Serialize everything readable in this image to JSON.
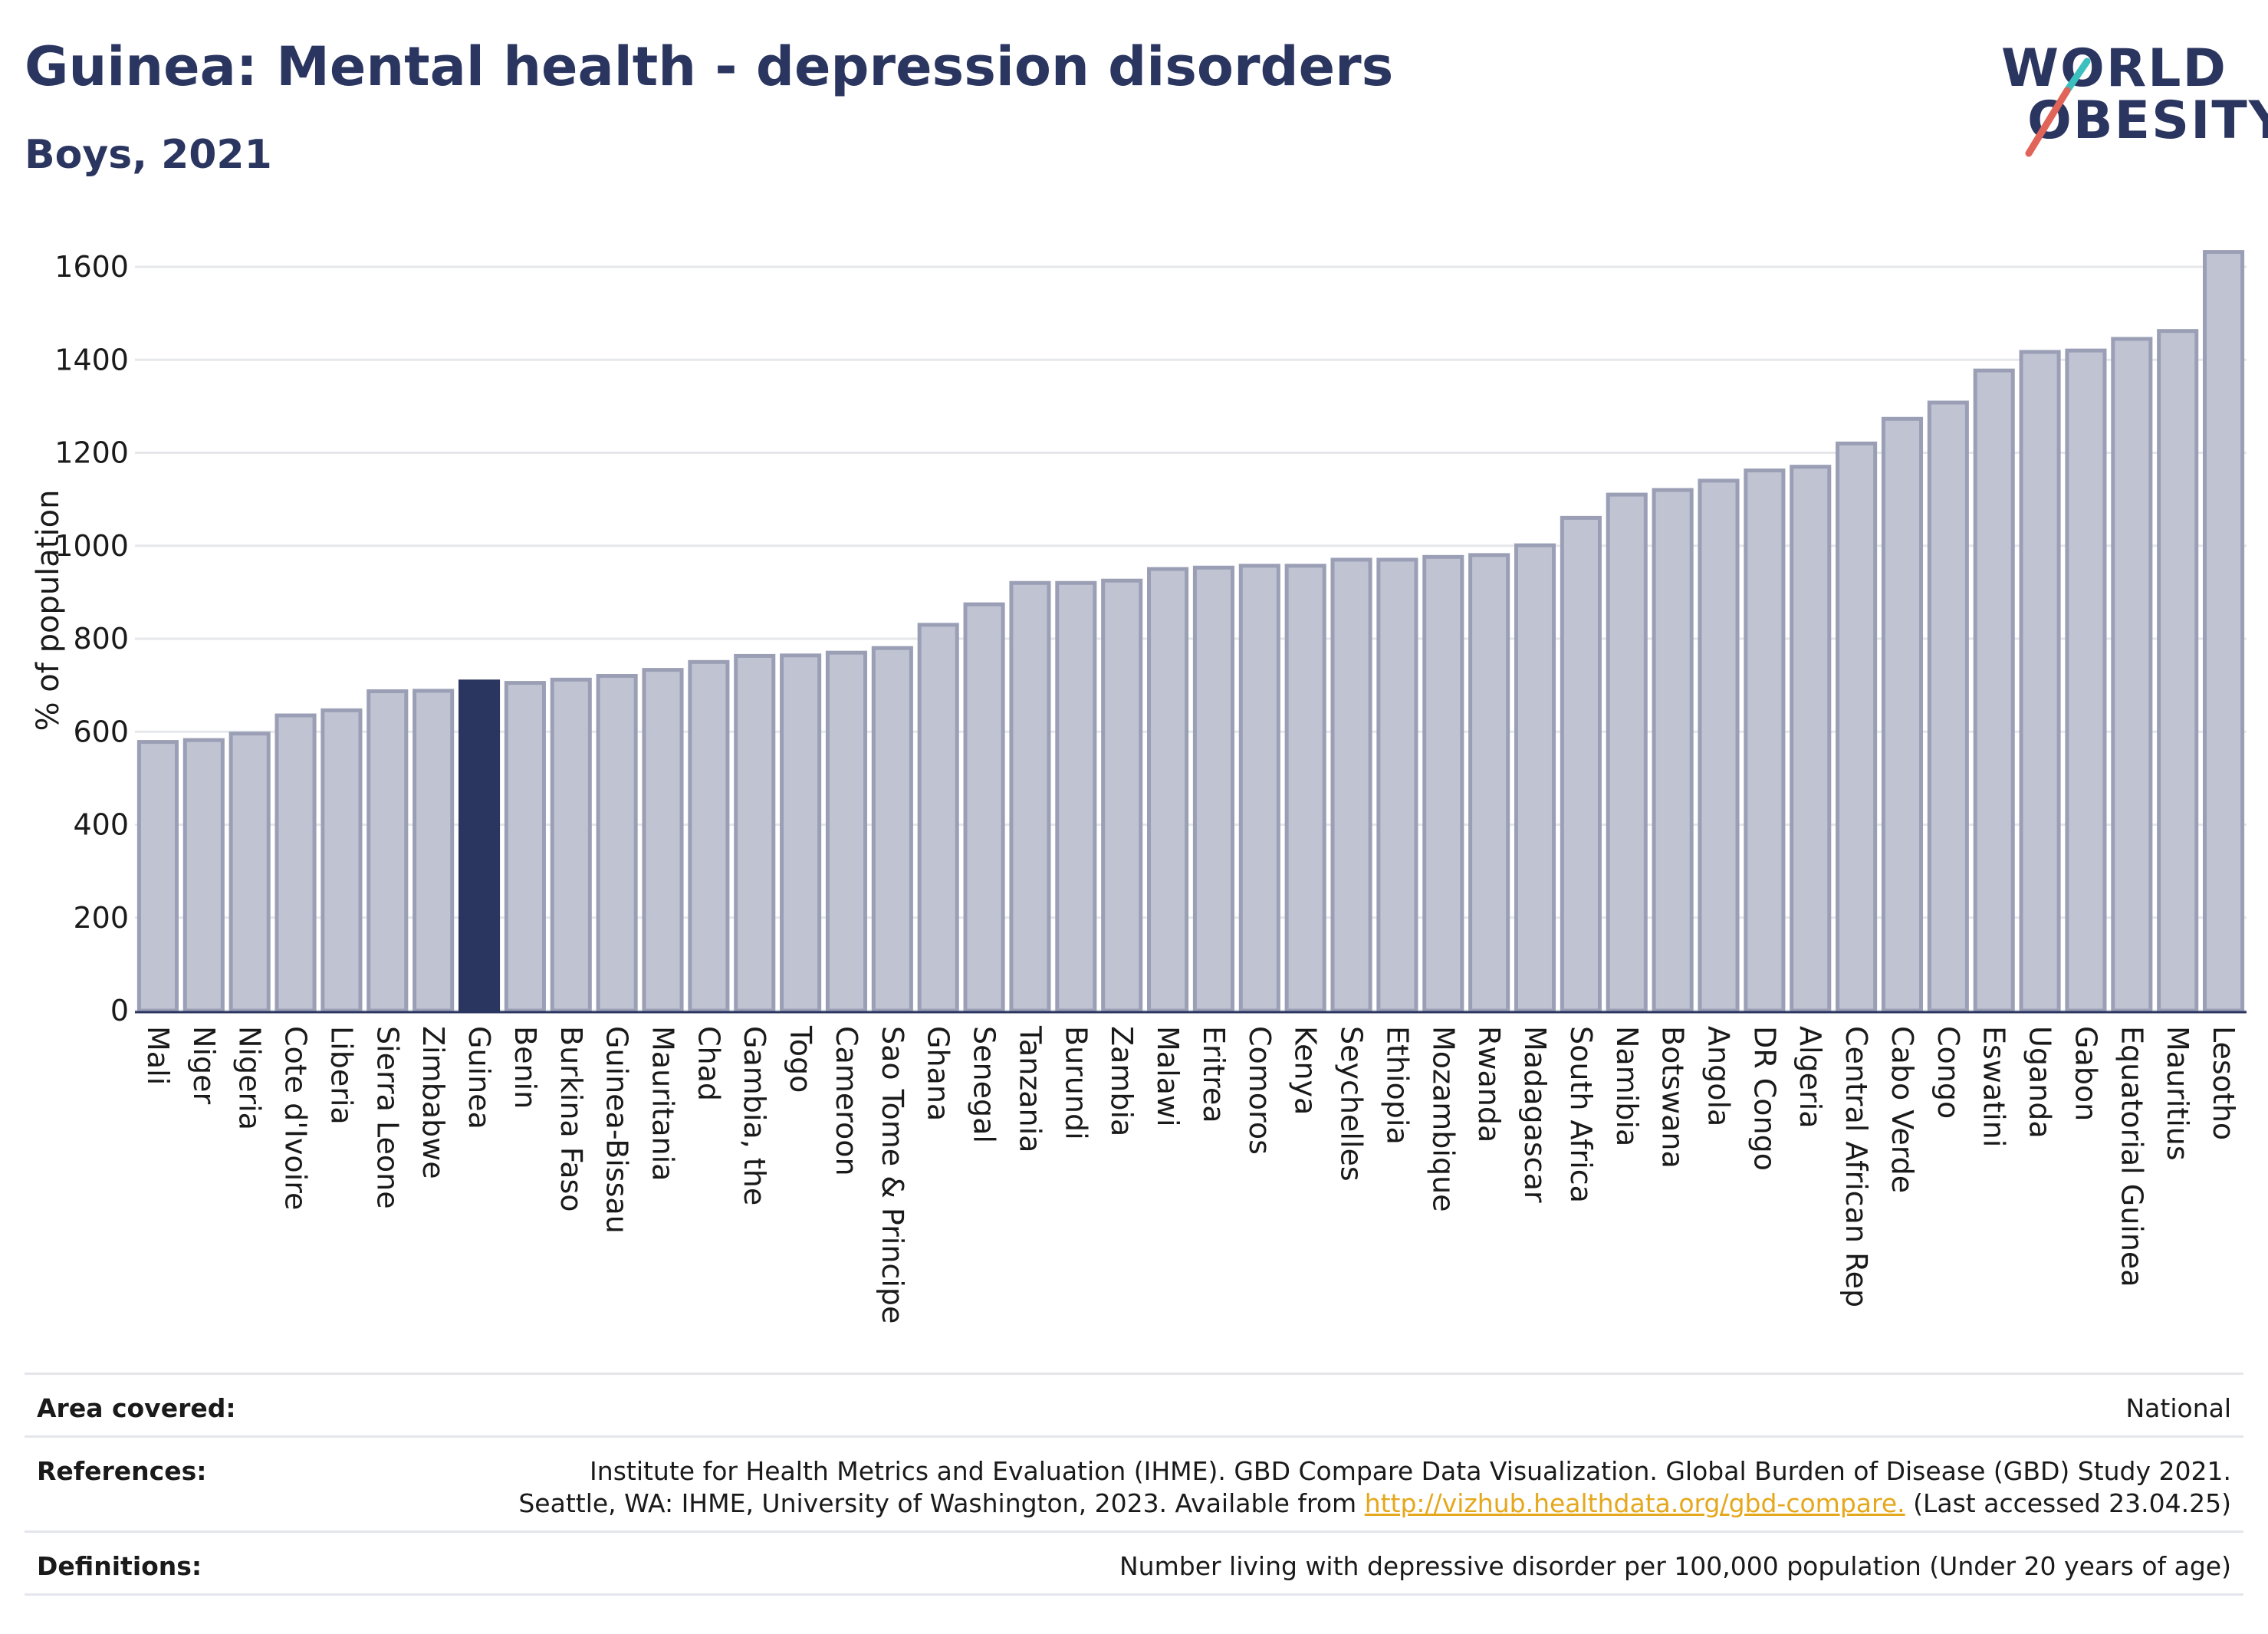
{
  "header": {
    "title": "Guinea: Mental health - depression disorders",
    "subtitle": "Boys, 2021"
  },
  "logo": {
    "line1": "WORLD",
    "line2": "OBESITY",
    "accent_red": "#e0645a",
    "accent_teal": "#3bbfbf"
  },
  "colors": {
    "bar": "#c0c3d1",
    "bar_border": "#9a9fb6",
    "highlight": "#2b3660",
    "grid": "#e6e7ea",
    "axis": "#2b3660"
  },
  "chart_data": {
    "type": "bar",
    "ylabel": "% of population",
    "ylim": [
      0,
      1600
    ],
    "yticks": [
      0,
      200,
      400,
      600,
      800,
      1000,
      1200,
      1400,
      1600
    ],
    "grid": true,
    "highlight": "Guinea",
    "categories": [
      "Mali",
      "Niger",
      "Nigeria",
      "Cote d'Ivoire",
      "Liberia",
      "Sierra Leone",
      "Zimbabwe",
      "Guinea",
      "Benin",
      "Burkina Faso",
      "Guinea-Bissau",
      "Mauritania",
      "Chad",
      "Gambia, the",
      "Togo",
      "Cameroon",
      "Sao Tome & Principe",
      "Ghana",
      "Senegal",
      "Tanzania",
      "Burundi",
      "Zambia",
      "Malawi",
      "Eritrea",
      "Comoros",
      "Kenya",
      "Seychelles",
      "Ethiopia",
      "Mozambique",
      "Rwanda",
      "Madagascar",
      "South Africa",
      "Namibia",
      "Botswana",
      "Angola",
      "DR Congo",
      "Algeria",
      "Central African Rep",
      "Cabo Verde",
      "Congo",
      "Eswatini",
      "Uganda",
      "Gabon",
      "Equatorial Guinea",
      "Mauritius",
      "Lesotho"
    ],
    "values": [
      578,
      582,
      596,
      635,
      646,
      687,
      688,
      708,
      705,
      712,
      720,
      733,
      750,
      763,
      764,
      770,
      780,
      830,
      874,
      920,
      920,
      925,
      950,
      953,
      957,
      957,
      970,
      970,
      976,
      980,
      1001,
      1060,
      1110,
      1120,
      1140,
      1162,
      1170,
      1220,
      1273,
      1308,
      1377,
      1417,
      1420,
      1445,
      1462,
      1632
    ]
  },
  "info": {
    "area_label": "Area covered:",
    "area_value": "National",
    "references_label": "References:",
    "references_line1": "Institute for Health Metrics and Evaluation (IHME). GBD Compare Data Visualization. Global Burden of Disease (GBD) Study 2021.",
    "references_line2_pre": "Seattle, WA: IHME, University of Washington, 2023. Available from ",
    "references_link": "http://vizhub.healthdata.org/gbd-compare.",
    "references_line2_post": " (Last accessed 23.04.25)",
    "definitions_label": "Definitions:",
    "definitions_value": "Number living with depressive disorder per 100,000 population (Under 20 years of age)"
  }
}
